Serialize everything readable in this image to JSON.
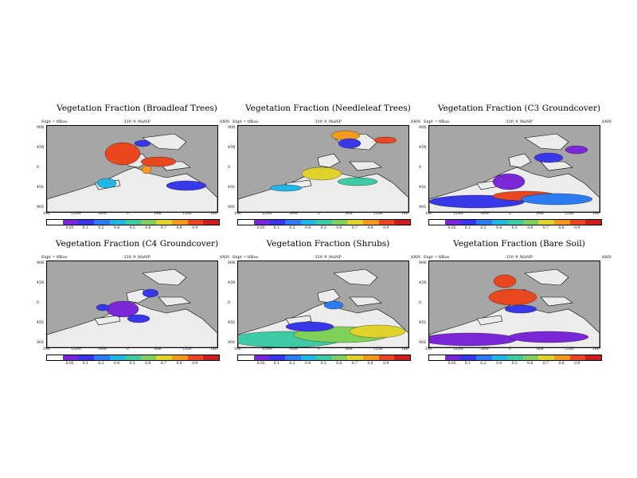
{
  "figure": {
    "colorbar_colors": [
      "#ffffff",
      "#7a28d6",
      "#3838e8",
      "#2a7cf0",
      "#21b6e6",
      "#3fc9a4",
      "#7fd15a",
      "#e0d22c",
      "#f39a1f",
      "#e8471f",
      "#c81e1e"
    ]
  },
  "chart_data": [
    {
      "type": "heatmap",
      "title": "Vegetation Fraction (Broadleaf Trees)",
      "subtitle_left": "Expt = tfKoo",
      "subtitle_center": "330_9_MaNP",
      "subtitle_right": "ANN",
      "lat_ticks": [
        "90N",
        "45N",
        "0",
        "45S",
        "90S"
      ],
      "lon_ticks": [
        "180",
        "120W",
        "60W",
        "0",
        "60E",
        "120E",
        "180"
      ],
      "colorbar_ticks": [
        "0.05",
        "0.1",
        "0.2",
        "0.4",
        "0.5",
        "0.6",
        "0.7",
        "0.8",
        "0.9"
      ]
    },
    {
      "type": "heatmap",
      "title": "Vegetation Fraction (Needleleaf Trees)",
      "subtitle_left": "Expt = tfKoo",
      "subtitle_center": "330_9_MaNP",
      "subtitle_right": "ANN",
      "lat_ticks": [
        "90N",
        "45N",
        "0",
        "45S",
        "90S"
      ],
      "lon_ticks": [
        "180",
        "120W",
        "60W",
        "0",
        "60E",
        "120E",
        "180"
      ],
      "colorbar_ticks": [
        "0.05",
        "0.1",
        "0.2",
        "0.4",
        "0.5",
        "0.6",
        "0.7",
        "0.8",
        "0.9"
      ]
    },
    {
      "type": "heatmap",
      "title": "Vegetation Fraction (C3 Groundcover)",
      "subtitle_left": "Expt = tfKoo",
      "subtitle_center": "330_9_MaNP",
      "subtitle_right": "ANN",
      "lat_ticks": [
        "90N",
        "45N",
        "0",
        "45S",
        "90S"
      ],
      "lon_ticks": [
        "180",
        "120W",
        "60W",
        "0",
        "60E",
        "120E",
        "180"
      ],
      "colorbar_ticks": [
        "0.05",
        "0.1",
        "0.2",
        "0.4",
        "0.5",
        "0.6",
        "0.7",
        "0.8",
        "0.9"
      ]
    },
    {
      "type": "heatmap",
      "title": "Vegetation Fraction (C4 Groundcover)",
      "subtitle_left": "Expt = tfKoo",
      "subtitle_center": "330_9_MaNP",
      "subtitle_right": "ANN",
      "lat_ticks": [
        "90N",
        "45N",
        "0",
        "45S",
        "90S"
      ],
      "lon_ticks": [
        "180",
        "120W",
        "60W",
        "0",
        "60E",
        "120E",
        "180"
      ],
      "colorbar_ticks": [
        "0.05",
        "0.1",
        "0.2",
        "0.4",
        "0.5",
        "0.6",
        "0.7",
        "0.8",
        "0.9"
      ]
    },
    {
      "type": "heatmap",
      "title": "Vegetation Fraction (Shrubs)",
      "subtitle_left": "Expt = tfKoo",
      "subtitle_center": "330_9_MaNP",
      "subtitle_right": "ANN",
      "lat_ticks": [
        "90N",
        "45N",
        "0",
        "45S",
        "90S"
      ],
      "lon_ticks": [
        "180",
        "120W",
        "60W",
        "0",
        "60E",
        "120E",
        "180"
      ],
      "colorbar_ticks": [
        "0.05",
        "0.1",
        "0.2",
        "0.4",
        "0.5",
        "0.6",
        "0.7",
        "0.8",
        "0.9"
      ]
    },
    {
      "type": "heatmap",
      "title": "Vegetation Fraction (Bare Soil)",
      "subtitle_left": "Expt = tfKoo",
      "subtitle_center": "330_9_MaNP",
      "subtitle_right": "ANN",
      "lat_ticks": [
        "90N",
        "45N",
        "0",
        "45S",
        "90S"
      ],
      "lon_ticks": [
        "180",
        "120W",
        "60W",
        "0",
        "60E",
        "120E",
        "180"
      ],
      "colorbar_ticks": [
        "0.05",
        "0.1",
        "0.2",
        "0.4",
        "0.5",
        "0.6",
        "0.7",
        "0.8",
        "0.9"
      ]
    }
  ]
}
